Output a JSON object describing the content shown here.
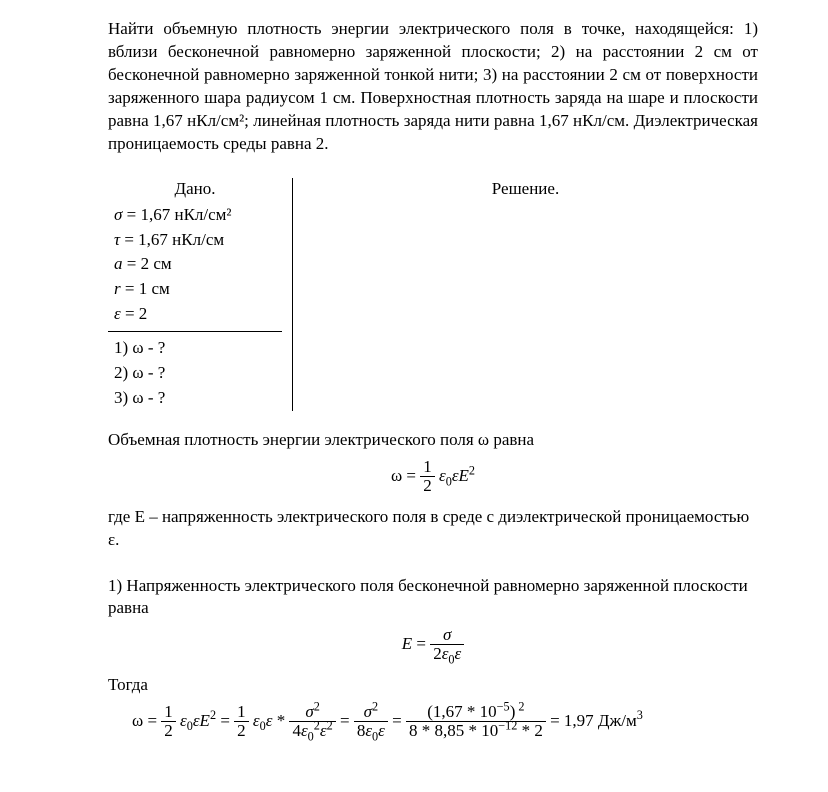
{
  "problem_text": "Найти объемную плотность энергии электрического поля в точке, находящейся: 1) вблизи бесконечной равномерно заряженной плоскости;    2) на расстоянии 2 см от бесконечной равномерно заряженной тонкой нити; 3) на расстоянии 2 см от поверхности заряженного шара радиусом 1 см. Поверхностная плотность заряда на шаре и плоскости равна 1,67 нКл/см²; линейная плотность заряда нити равна 1,67 нКл/см. Диэлектрическая проницаемость среды равна 2.",
  "given_header": "Дано.",
  "solution_header": "Решение.",
  "given": {
    "sigma_sym": "σ",
    "sigma_val": " = 1,67 нКл/см²",
    "tau_sym": "τ",
    "tau_val": " = 1,67 нКл/см",
    "a_sym": "a",
    "a_val": " = 2 см",
    "r_sym": "r",
    "r_val": " = 1 см",
    "eps_sym": "ε",
    "eps_val": " = 2"
  },
  "ask": {
    "q1": "1) ω - ?",
    "q2": "2) ω - ?",
    "q3": "3) ω - ?"
  },
  "body": {
    "p1": "Объемная плотность энергии электрического поля ω равна",
    "formula_main": {
      "lhs": "ω = ",
      "num": "1",
      "den": "2",
      "tail_html": " <span class=\"mi\">ε</span><sub>0</sub><span class=\"mi\">ε</span><span class=\"mi\">E</span><sup>2</sup>"
    },
    "p2": "где E – напряженность электрического поля в среде с диэлектрической проницаемостью ε.",
    "p3": "1) Напряженность электрического поля бесконечной равномерно заряженной плоскости равна",
    "formula_E": {
      "lhs_html": "<span class=\"mi\">E</span> = ",
      "num_html": "<span class=\"mi\">σ</span>",
      "den_html": "2<span class=\"mi\">ε</span><sub>0</sub><span class=\"mi\">ε</span>"
    },
    "p4": "Тогда",
    "formula_chain": {
      "t1_html": "ω = <span class=\"frac\"><span class=\"num\">1</span><span class=\"den\">2</span></span> <span class=\"mi\">ε</span><sub>0</sub><span class=\"mi\">εE</span><sup>2</sup> = <span class=\"frac\"><span class=\"num\">1</span><span class=\"den\">2</span></span> <span class=\"mi\">ε</span><sub>0</sub><span class=\"mi\">ε</span> * <span class=\"frac\"><span class=\"num\"><span class=\"mi\">σ</span><sup>2</sup></span><span class=\"den\">4<span class=\"mi\">ε</span><sub>0</sub><sup>2</sup><span class=\"mi\">ε</span><sup>2</sup></span></span> = <span class=\"frac\"><span class=\"num\"><span class=\"mi\">σ</span><sup>2</sup></span><span class=\"den\">8<span class=\"mi\">ε</span><sub>0</sub><span class=\"mi\">ε</span></span></span> = <span class=\"frac\"><span class=\"num\">(1,67 * 10<sup>−5</sup>)<sup> 2</sup></span><span class=\"den\">8 * 8,85 * 10<sup>−12</sup> * 2</span></span> = 1,97 Дж/м<sup>3</sup>"
    }
  },
  "style": {
    "font_family": "Times New Roman",
    "text_color": "#000000",
    "background": "#ffffff",
    "font_size_pt": 13
  }
}
